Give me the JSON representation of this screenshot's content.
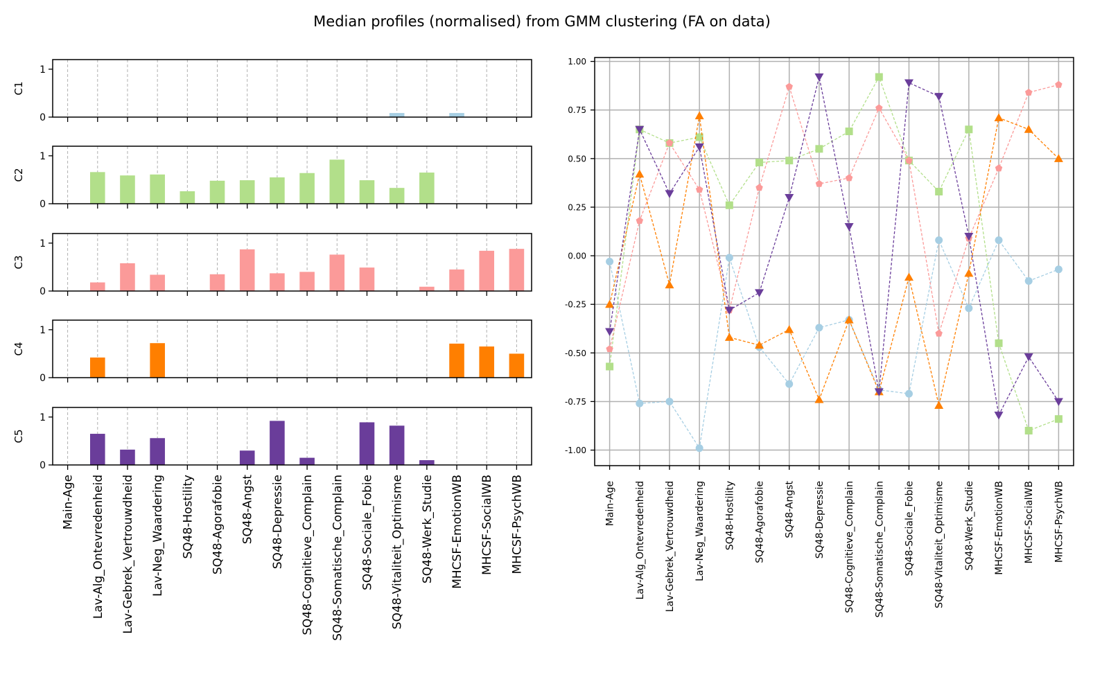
{
  "title": "Median profiles (normalised) from GMM clustering (FA on data)",
  "chart_data": [
    {
      "type": "bar",
      "panel": "left",
      "layout": "stacked small multiples, one row per cluster",
      "categories": [
        "Main-Age",
        "Lav-Alg_Ontevredenheid",
        "Lav-Gebrek_Vertrouwdheid",
        "Lav-Neg_Waardering",
        "SQ48-Hostility",
        "SQ48-Agorafobie",
        "SQ48-Angst",
        "SQ48-Depressie",
        "SQ48-Cognitieve_Complain",
        "SQ48-Somatische_Complain",
        "SQ48-Sociale_Fobie",
        "SQ48-Vitaliteit_Optimisme",
        "SQ48-Werk_Studie",
        "MHCSF-EmotionWB",
        "MHCSF-SocialWB",
        "MHCSF-PsychWB"
      ],
      "ylim": [
        0,
        1.2
      ],
      "yticks": [
        0,
        1
      ],
      "grid": "x dashed",
      "series": [
        {
          "name": "C1",
          "color": "#a6cee3",
          "values": [
            0,
            0,
            0,
            0,
            0,
            0,
            0,
            0,
            0,
            0,
            0,
            0.085,
            0,
            0.085,
            0,
            0
          ]
        },
        {
          "name": "C2",
          "color": "#b2df8a",
          "values": [
            0,
            0.66,
            0.59,
            0.61,
            0.26,
            0.48,
            0.49,
            0.55,
            0.64,
            0.92,
            0.49,
            0.33,
            0.65,
            0,
            0,
            0
          ]
        },
        {
          "name": "C3",
          "color": "#fb9a99",
          "values": [
            0,
            0.18,
            0.58,
            0.34,
            0,
            0.35,
            0.87,
            0.37,
            0.4,
            0.76,
            0.49,
            0,
            0.09,
            0.45,
            0.84,
            0.88
          ]
        },
        {
          "name": "C4",
          "color": "#ff7f00",
          "values": [
            0,
            0.42,
            0,
            0.72,
            0,
            0,
            0,
            0,
            0,
            0,
            0,
            0,
            0,
            0.71,
            0.65,
            0.5
          ]
        },
        {
          "name": "C5",
          "color": "#6a3d9a",
          "values": [
            0,
            0.65,
            0.32,
            0.56,
            0,
            0,
            0.3,
            0.92,
            0.15,
            0,
            0.89,
            0.82,
            0.1,
            0,
            0,
            0
          ]
        }
      ]
    },
    {
      "type": "line",
      "panel": "right",
      "categories": [
        "Main-Age",
        "Lav-Alg_Ontevredenheid",
        "Lav-Gebrek_Vertrouwdheid",
        "Lav-Neg_Waardering",
        "SQ48-Hostility",
        "SQ48-Agorafobie",
        "SQ48-Angst",
        "SQ48-Depressie",
        "SQ48-Cognitieve_Complain",
        "SQ48-Somatische_Complain",
        "SQ48-Sociale_Fobie",
        "SQ48-Vitaliteit_Optimisme",
        "SQ48-Werk_Studie",
        "MHCSF-EmotionWB",
        "MHCSF-SocialWB",
        "MHCSF-PsychWB"
      ],
      "ylim": [
        -1.08,
        1.02
      ],
      "yticks": [
        "-1.00",
        "-0.75",
        "-0.50",
        "-0.25",
        "0.00",
        "0.25",
        "0.50",
        "0.75",
        "1.00"
      ],
      "grid": "both",
      "line_style": "dashed",
      "series": [
        {
          "name": "C1",
          "color": "#a6cee3",
          "marker": "circle",
          "values": [
            -0.03,
            -0.76,
            -0.75,
            -0.99,
            -0.01,
            -0.47,
            -0.66,
            -0.37,
            -0.33,
            -0.69,
            -0.71,
            0.08,
            -0.27,
            0.08,
            -0.13,
            -0.07
          ]
        },
        {
          "name": "C2",
          "color": "#b2df8a",
          "marker": "square",
          "values": [
            -0.57,
            0.65,
            0.58,
            0.61,
            0.26,
            0.48,
            0.49,
            0.55,
            0.64,
            0.92,
            0.49,
            0.33,
            0.65,
            -0.45,
            -0.9,
            -0.84
          ]
        },
        {
          "name": "C3",
          "color": "#fb9a99",
          "marker": "pentagon",
          "values": [
            -0.48,
            0.18,
            0.58,
            0.34,
            -0.28,
            0.35,
            0.87,
            0.37,
            0.4,
            0.76,
            0.49,
            -0.4,
            0.09,
            0.45,
            0.84,
            0.88
          ]
        },
        {
          "name": "C4",
          "color": "#ff7f00",
          "marker": "triangle-up",
          "values": [
            -0.25,
            0.42,
            -0.15,
            0.72,
            -0.42,
            -0.46,
            -0.38,
            -0.74,
            -0.33,
            -0.7,
            -0.11,
            -0.77,
            -0.09,
            0.71,
            0.65,
            0.5
          ]
        },
        {
          "name": "C5",
          "color": "#6a3d9a",
          "marker": "triangle-down",
          "values": [
            -0.39,
            0.65,
            0.32,
            0.56,
            -0.28,
            -0.19,
            0.3,
            0.92,
            0.15,
            -0.7,
            0.89,
            0.82,
            0.1,
            -0.82,
            -0.52,
            -0.75
          ]
        }
      ]
    }
  ]
}
